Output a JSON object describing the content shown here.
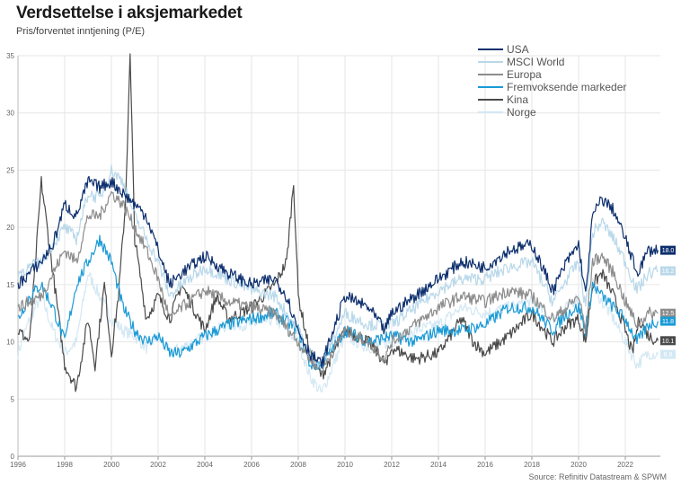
{
  "title": "Verdsettelse i aksjemarkedet",
  "subtitle": "Pris/forventet inntjening (P/E)",
  "source": "Source: Refinitiv Datastream & SPWM",
  "chart_data": {
    "type": "line",
    "title": "Verdsettelse i aksjemarkedet",
    "ylabel": "Pris/forventet inntjening (P/E)",
    "xlim": [
      1996,
      2023.5
    ],
    "ylim": [
      0,
      35
    ],
    "yticks": [
      0,
      5,
      10,
      15,
      20,
      25,
      30,
      35
    ],
    "xticks": [
      "1996",
      "1998",
      "2000",
      "2002",
      "2004",
      "2006",
      "2008",
      "2010",
      "2012",
      "2014",
      "2016",
      "2018",
      "2020",
      "2022"
    ],
    "grid": true,
    "legend_position": "top-right",
    "series": [
      {
        "name": "USA",
        "color": "#0d2f6e",
        "end_label": "18.0",
        "x": [
          1996,
          1997,
          1997.5,
          1998,
          1998.5,
          1999,
          1999.5,
          2000,
          2000.5,
          2001,
          2001.5,
          2002,
          2002.5,
          2003,
          2004,
          2005,
          2006,
          2007,
          2007.5,
          2008,
          2008.5,
          2009,
          2009.5,
          2010,
          2011,
          2011.7,
          2012,
          2013,
          2014,
          2015,
          2016,
          2017,
          2018,
          2018.9,
          2019.5,
          2020,
          2020.3,
          2020.6,
          2021,
          2021.5,
          2022,
          2022.5,
          2023,
          2023.4
        ],
        "y": [
          15,
          17,
          18.5,
          22,
          21,
          24,
          23.5,
          24,
          23,
          22,
          21,
          18,
          15,
          16,
          17.5,
          16,
          15,
          15.5,
          14,
          11,
          9,
          8,
          11,
          14,
          13,
          11,
          12.5,
          14,
          15.5,
          17,
          16.5,
          18,
          18.5,
          14.5,
          17,
          18.5,
          14,
          21,
          22.5,
          21.5,
          19,
          16,
          18,
          18.0
        ]
      },
      {
        "name": "MSCI World",
        "color": "#b9d8ea",
        "end_label": "16.2",
        "x": [
          1996,
          1997,
          1998,
          1998.5,
          1999,
          1999.5,
          2000,
          2000.5,
          2001,
          2001.5,
          2002,
          2002.5,
          2003,
          2004,
          2005,
          2006,
          2007,
          2008,
          2008.5,
          2009,
          2010,
          2011,
          2012,
          2013,
          2014,
          2015,
          2016,
          2017,
          2018,
          2018.9,
          2019.5,
          2020,
          2020.3,
          2020.6,
          2021,
          2021.5,
          2022,
          2022.5,
          2023,
          2023.4
        ],
        "y": [
          16,
          17,
          20,
          19,
          23,
          22.5,
          25,
          24,
          21,
          19,
          17,
          14,
          15,
          16.5,
          15.5,
          14.5,
          14,
          11,
          9,
          8,
          12.5,
          11.5,
          11.5,
          13,
          14.5,
          15.5,
          15.5,
          16.5,
          17,
          13.5,
          15.5,
          17,
          13,
          19.5,
          20.5,
          19,
          17,
          14.5,
          16,
          16.2
        ]
      },
      {
        "name": "Europa",
        "color": "#8c8c8c",
        "end_label": "12.5",
        "x": [
          1996,
          1997,
          1998,
          1998.5,
          1999,
          1999.5,
          2000,
          2000.5,
          2001,
          2001.5,
          2002,
          2002.5,
          2003,
          2004,
          2005,
          2006,
          2007,
          2008,
          2008.5,
          2009,
          2010,
          2011,
          2011.7,
          2012,
          2013,
          2014,
          2015,
          2016,
          2017,
          2018,
          2018.9,
          2019.5,
          2020,
          2020.3,
          2020.6,
          2021,
          2021.5,
          2022,
          2022.5,
          2023,
          2023.4
        ],
        "y": [
          13,
          14,
          18,
          17,
          21,
          21,
          23,
          22,
          20,
          18,
          15.5,
          12,
          13,
          14.5,
          13.5,
          13,
          12.5,
          10,
          8.5,
          7.5,
          11,
          10,
          8.5,
          10,
          11.5,
          13,
          14,
          13.5,
          14.5,
          14,
          12,
          13,
          14,
          11,
          17,
          17.5,
          16,
          13.5,
          11.5,
          12.5,
          12.5
        ]
      },
      {
        "name": "Fremvoksende markeder",
        "color": "#1a9ad6",
        "end_label": "11.8",
        "x": [
          1996,
          1996.5,
          1997,
          1997.5,
          1998,
          1998.5,
          1999,
          1999.5,
          2000,
          2000.5,
          2001,
          2001.5,
          2002,
          2002.5,
          2003,
          2004,
          2005,
          2006,
          2007,
          2008,
          2008.5,
          2009,
          2010,
          2011,
          2012,
          2013,
          2014,
          2015,
          2016,
          2017,
          2018,
          2018.9,
          2019.5,
          2020,
          2020.3,
          2020.6,
          2021,
          2021.5,
          2022,
          2022.5,
          2023,
          2023.4
        ],
        "y": [
          12,
          14,
          15,
          13,
          10,
          15,
          17,
          19,
          17,
          13,
          11,
          10,
          10.5,
          9,
          9,
          10.5,
          11.5,
          12,
          12.5,
          11,
          8,
          8,
          11,
          10,
          10.5,
          10,
          11,
          11,
          11.5,
          13,
          13,
          11,
          12.5,
          13,
          11,
          15,
          14,
          13,
          12,
          10,
          11.5,
          11.8
        ]
      },
      {
        "name": "Kina",
        "color": "#4a4a4a",
        "end_label": "10.1",
        "x": [
          1996,
          1996.5,
          1997,
          1997.5,
          1998,
          1998.5,
          1999,
          1999.3,
          1999.7,
          2000,
          2000.3,
          2000.6,
          2000.8,
          2001,
          2001.5,
          2002,
          2002.5,
          2003,
          2003.5,
          2004,
          2004.5,
          2005,
          2006,
          2007,
          2007.5,
          2007.8,
          2008,
          2008.5,
          2009,
          2010,
          2011,
          2011.8,
          2012,
          2013,
          2014,
          2015,
          2015.5,
          2016,
          2017,
          2018,
          2018.9,
          2019.5,
          2020,
          2020.3,
          2020.6,
          2021,
          2021.5,
          2022,
          2022.3,
          2022.6,
          2023,
          2023.4
        ],
        "y": [
          11,
          10,
          24,
          16,
          8,
          6,
          12,
          8,
          15,
          9,
          14,
          22,
          35,
          19,
          12,
          14,
          12,
          15,
          13,
          11,
          14,
          12,
          13,
          15,
          17,
          24,
          14,
          9,
          7,
          11,
          10,
          8,
          9.5,
          8.5,
          9,
          12,
          10,
          9,
          10.5,
          12.5,
          10,
          11.5,
          12,
          10,
          15,
          16,
          14,
          11,
          9,
          12,
          10.5,
          10.1
        ]
      },
      {
        "name": "Norge",
        "color": "#d3e8f4",
        "end_label": "8.9",
        "x": [
          1996,
          1996.5,
          1997,
          1997.5,
          1998,
          1998.5,
          1999,
          1999.5,
          2000,
          2000.5,
          2001,
          2001.5,
          2002,
          2002.5,
          2003,
          2004,
          2005,
          2006,
          2007,
          2008,
          2008.5,
          2009,
          2010,
          2011,
          2012,
          2013,
          2014,
          2015,
          2016,
          2017,
          2018,
          2018.9,
          2019.5,
          2020,
          2020.3,
          2020.6,
          2021,
          2021.5,
          2022,
          2022.5,
          2023,
          2023.4
        ],
        "y": [
          9,
          12,
          14,
          11,
          9,
          10,
          16,
          14,
          12,
          11,
          10.5,
          9.5,
          10.5,
          9,
          9.5,
          10.5,
          11.5,
          11.5,
          12,
          10,
          7,
          5.5,
          10.5,
          9.5,
          10,
          11,
          11.5,
          13,
          12.5,
          13,
          13.5,
          12,
          13,
          14,
          11,
          15,
          13.5,
          12,
          10,
          8,
          9,
          8.9
        ]
      }
    ]
  }
}
